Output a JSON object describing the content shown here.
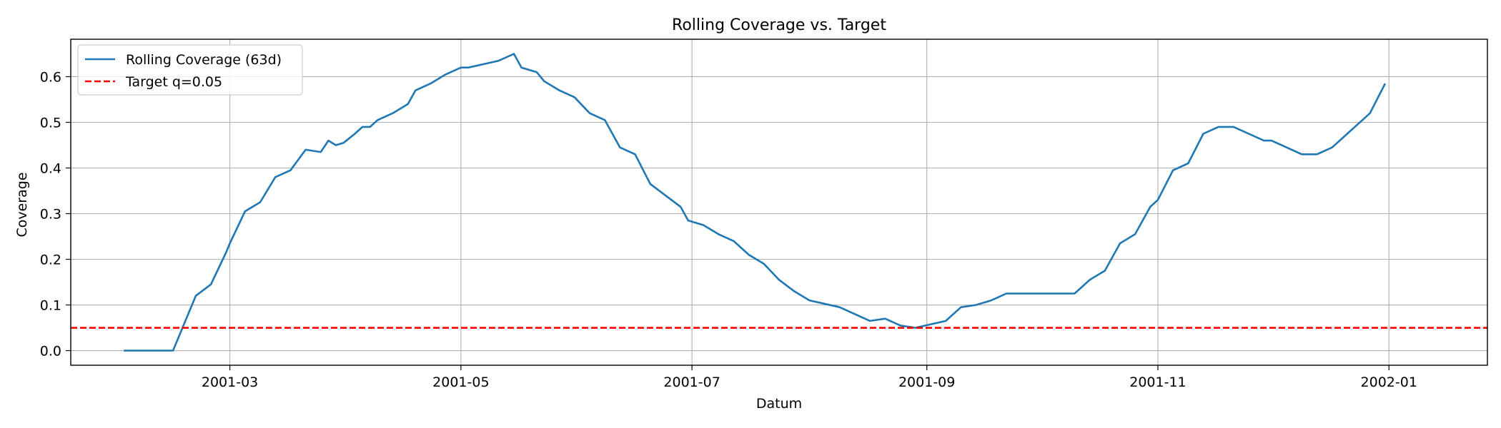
{
  "chart_data": {
    "type": "line",
    "title": "Rolling Coverage vs. Target",
    "xlabel": "Datum",
    "ylabel": "Coverage",
    "xlim": [
      "2001-01-18",
      "2002-01-27"
    ],
    "ylim": [
      -0.032,
      0.682
    ],
    "x_ticks": [
      "2001-03",
      "2001-05",
      "2001-07",
      "2001-09",
      "2001-11",
      "2002-01"
    ],
    "x_tick_dates": [
      "2001-03-01",
      "2001-05-01",
      "2001-07-01",
      "2001-09-01",
      "2001-11-01",
      "2002-01-01"
    ],
    "y_ticks": [
      "0.0",
      "0.1",
      "0.2",
      "0.3",
      "0.4",
      "0.5",
      "0.6"
    ],
    "y_tick_values": [
      0.0,
      0.1,
      0.2,
      0.3,
      0.4,
      0.5,
      0.6
    ],
    "grid": true,
    "legend_position": "top-left",
    "series": [
      {
        "name": "Rolling Coverage (63d)",
        "color": "#1f77b4",
        "style": "solid",
        "x": [
          "2001-02-01",
          "2001-02-14",
          "2001-02-20",
          "2001-02-24",
          "2001-02-28",
          "2001-03-01",
          "2001-03-05",
          "2001-03-09",
          "2001-03-13",
          "2001-03-17",
          "2001-03-21",
          "2001-03-25",
          "2001-03-27",
          "2001-03-29",
          "2001-03-31",
          "2001-04-03",
          "2001-04-05",
          "2001-04-07",
          "2001-04-09",
          "2001-04-13",
          "2001-04-17",
          "2001-04-19",
          "2001-04-23",
          "2001-04-27",
          "2001-05-01",
          "2001-05-03",
          "2001-05-11",
          "2001-05-15",
          "2001-05-17",
          "2001-05-21",
          "2001-05-23",
          "2001-05-27",
          "2001-05-31",
          "2001-06-04",
          "2001-06-08",
          "2001-06-12",
          "2001-06-16",
          "2001-06-20",
          "2001-06-28",
          "2001-06-30",
          "2001-07-04",
          "2001-07-08",
          "2001-07-12",
          "2001-07-16",
          "2001-07-20",
          "2001-07-24",
          "2001-07-28",
          "2001-08-01",
          "2001-08-09",
          "2001-08-13",
          "2001-08-17",
          "2001-08-21",
          "2001-08-25",
          "2001-08-29",
          "2001-09-06",
          "2001-09-10",
          "2001-09-14",
          "2001-09-18",
          "2001-09-22",
          "2001-10-10",
          "2001-10-14",
          "2001-10-18",
          "2001-10-22",
          "2001-10-26",
          "2001-10-30",
          "2001-11-01",
          "2001-11-05",
          "2001-11-09",
          "2001-11-13",
          "2001-11-17",
          "2001-11-21",
          "2001-11-25",
          "2001-11-29",
          "2001-12-01",
          "2001-12-05",
          "2001-12-09",
          "2001-12-13",
          "2001-12-17",
          "2001-12-21",
          "2001-12-25",
          "2001-12-27",
          "2001-12-31"
        ],
        "y": [
          0.0,
          0.0,
          0.12,
          0.145,
          0.215,
          0.235,
          0.305,
          0.325,
          0.38,
          0.395,
          0.44,
          0.435,
          0.46,
          0.45,
          0.455,
          0.475,
          0.49,
          0.49,
          0.505,
          0.52,
          0.54,
          0.57,
          0.585,
          0.605,
          0.62,
          0.62,
          0.635,
          0.65,
          0.62,
          0.61,
          0.59,
          0.57,
          0.555,
          0.52,
          0.505,
          0.445,
          0.43,
          0.365,
          0.315,
          0.285,
          0.275,
          0.255,
          0.24,
          0.21,
          0.19,
          0.155,
          0.13,
          0.11,
          0.095,
          0.08,
          0.065,
          0.07,
          0.055,
          0.05,
          0.065,
          0.095,
          0.1,
          0.11,
          0.125,
          0.125,
          0.155,
          0.175,
          0.235,
          0.255,
          0.315,
          0.33,
          0.395,
          0.41,
          0.475,
          0.49,
          0.49,
          0.475,
          0.46,
          0.46,
          0.445,
          0.43,
          0.43,
          0.445,
          0.475,
          0.505,
          0.52,
          0.585
        ]
      },
      {
        "name": "Target q=0.05",
        "color": "#ff0000",
        "style": "dashed",
        "y_constant": 0.05
      }
    ]
  }
}
